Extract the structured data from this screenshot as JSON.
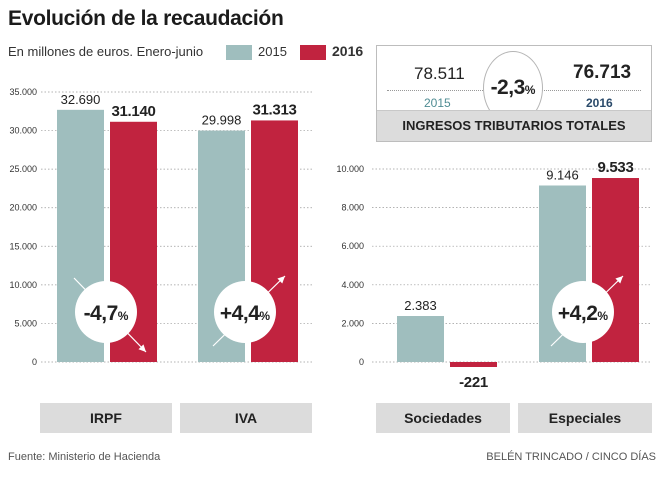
{
  "header": {
    "title": "Evolución de la recaudación",
    "subtitle": "En millones de euros. Enero-junio"
  },
  "legend": [
    {
      "label": "2015",
      "color": "#9fbebe"
    },
    {
      "label": "2016",
      "color": "#c1233f"
    }
  ],
  "totals": {
    "value_2015": "78.511",
    "year_2015": "2015",
    "value_2016": "76.713",
    "year_2016": "2016",
    "change_number": "-2,3",
    "change_unit": "%",
    "label": "INGRESOS TRIBUTARIOS TOTALES",
    "year_2015_color": "#4f8c93",
    "year_2016_color": "#2a4a6a"
  },
  "chart_data": [
    {
      "type": "bar",
      "title": "",
      "xlabel": "",
      "ylabel": "",
      "categories": [
        "IRPF",
        "IVA"
      ],
      "series": [
        {
          "name": "2015",
          "values": [
            32690,
            29998
          ],
          "labels": [
            "32.690",
            "29.998"
          ]
        },
        {
          "name": "2016",
          "values": [
            31140,
            31313
          ],
          "labels": [
            "31.140",
            "31.313"
          ]
        }
      ],
      "changes": [
        {
          "number": "-4,7",
          "unit": "%",
          "direction": "down"
        },
        {
          "number": "+4,4",
          "unit": "%",
          "direction": "up"
        }
      ],
      "ylim": [
        0,
        35000
      ],
      "yticks": [
        0,
        5000,
        10000,
        15000,
        20000,
        25000,
        30000,
        35000
      ],
      "ytick_labels": [
        "0",
        "5.000",
        "10.000",
        "15.000",
        "20.000",
        "25.000",
        "30.000",
        "35.000"
      ],
      "grid": true
    },
    {
      "type": "bar",
      "title": "",
      "xlabel": "",
      "ylabel": "",
      "categories": [
        "Sociedades",
        "Especiales"
      ],
      "series": [
        {
          "name": "2015",
          "values": [
            2383,
            9146
          ],
          "labels": [
            "2.383",
            "9.146"
          ]
        },
        {
          "name": "2016",
          "values": [
            -221,
            9533
          ],
          "labels": [
            "-221",
            "9.533"
          ]
        }
      ],
      "changes": [
        null,
        {
          "number": "+4,2",
          "unit": "%",
          "direction": "up"
        }
      ],
      "ylim": [
        0,
        10000
      ],
      "yticks": [
        0,
        2000,
        4000,
        6000,
        8000,
        10000
      ],
      "ytick_labels": [
        "0",
        "2.000",
        "4.000",
        "6.000",
        "8.000",
        "10.000"
      ],
      "grid": true
    }
  ],
  "footer": {
    "source": "Fuente: Ministerio de Hacienda",
    "credit": "BELÉN TRINCADO / CINCO DÍAS"
  }
}
